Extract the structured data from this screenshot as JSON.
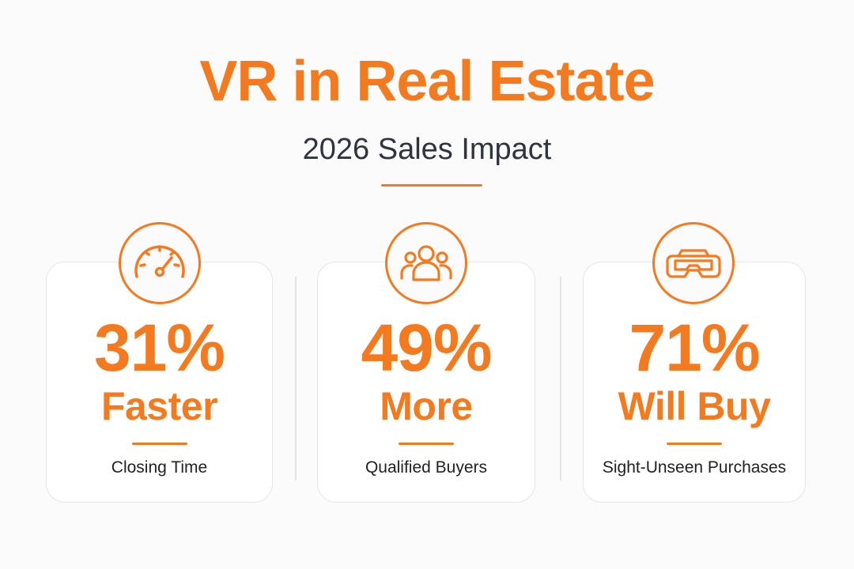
{
  "colors": {
    "accent": "#f47a20",
    "heading_dark": "#2f3440",
    "caption_dark": "#222222",
    "card_border": "#e6e6e6"
  },
  "header": {
    "title": "VR in Real Estate",
    "subtitle": "2026 Sales Impact"
  },
  "stats": [
    {
      "icon": "speedometer-icon",
      "value": "31%",
      "label": "Faster",
      "caption": "Closing Time"
    },
    {
      "icon": "users-group-icon",
      "value": "49%",
      "label": "More",
      "caption": "Qualified Buyers"
    },
    {
      "icon": "vr-headset-icon",
      "value": "71%",
      "label": "Will Buy",
      "caption": "Sight-Unseen Purchases"
    }
  ]
}
